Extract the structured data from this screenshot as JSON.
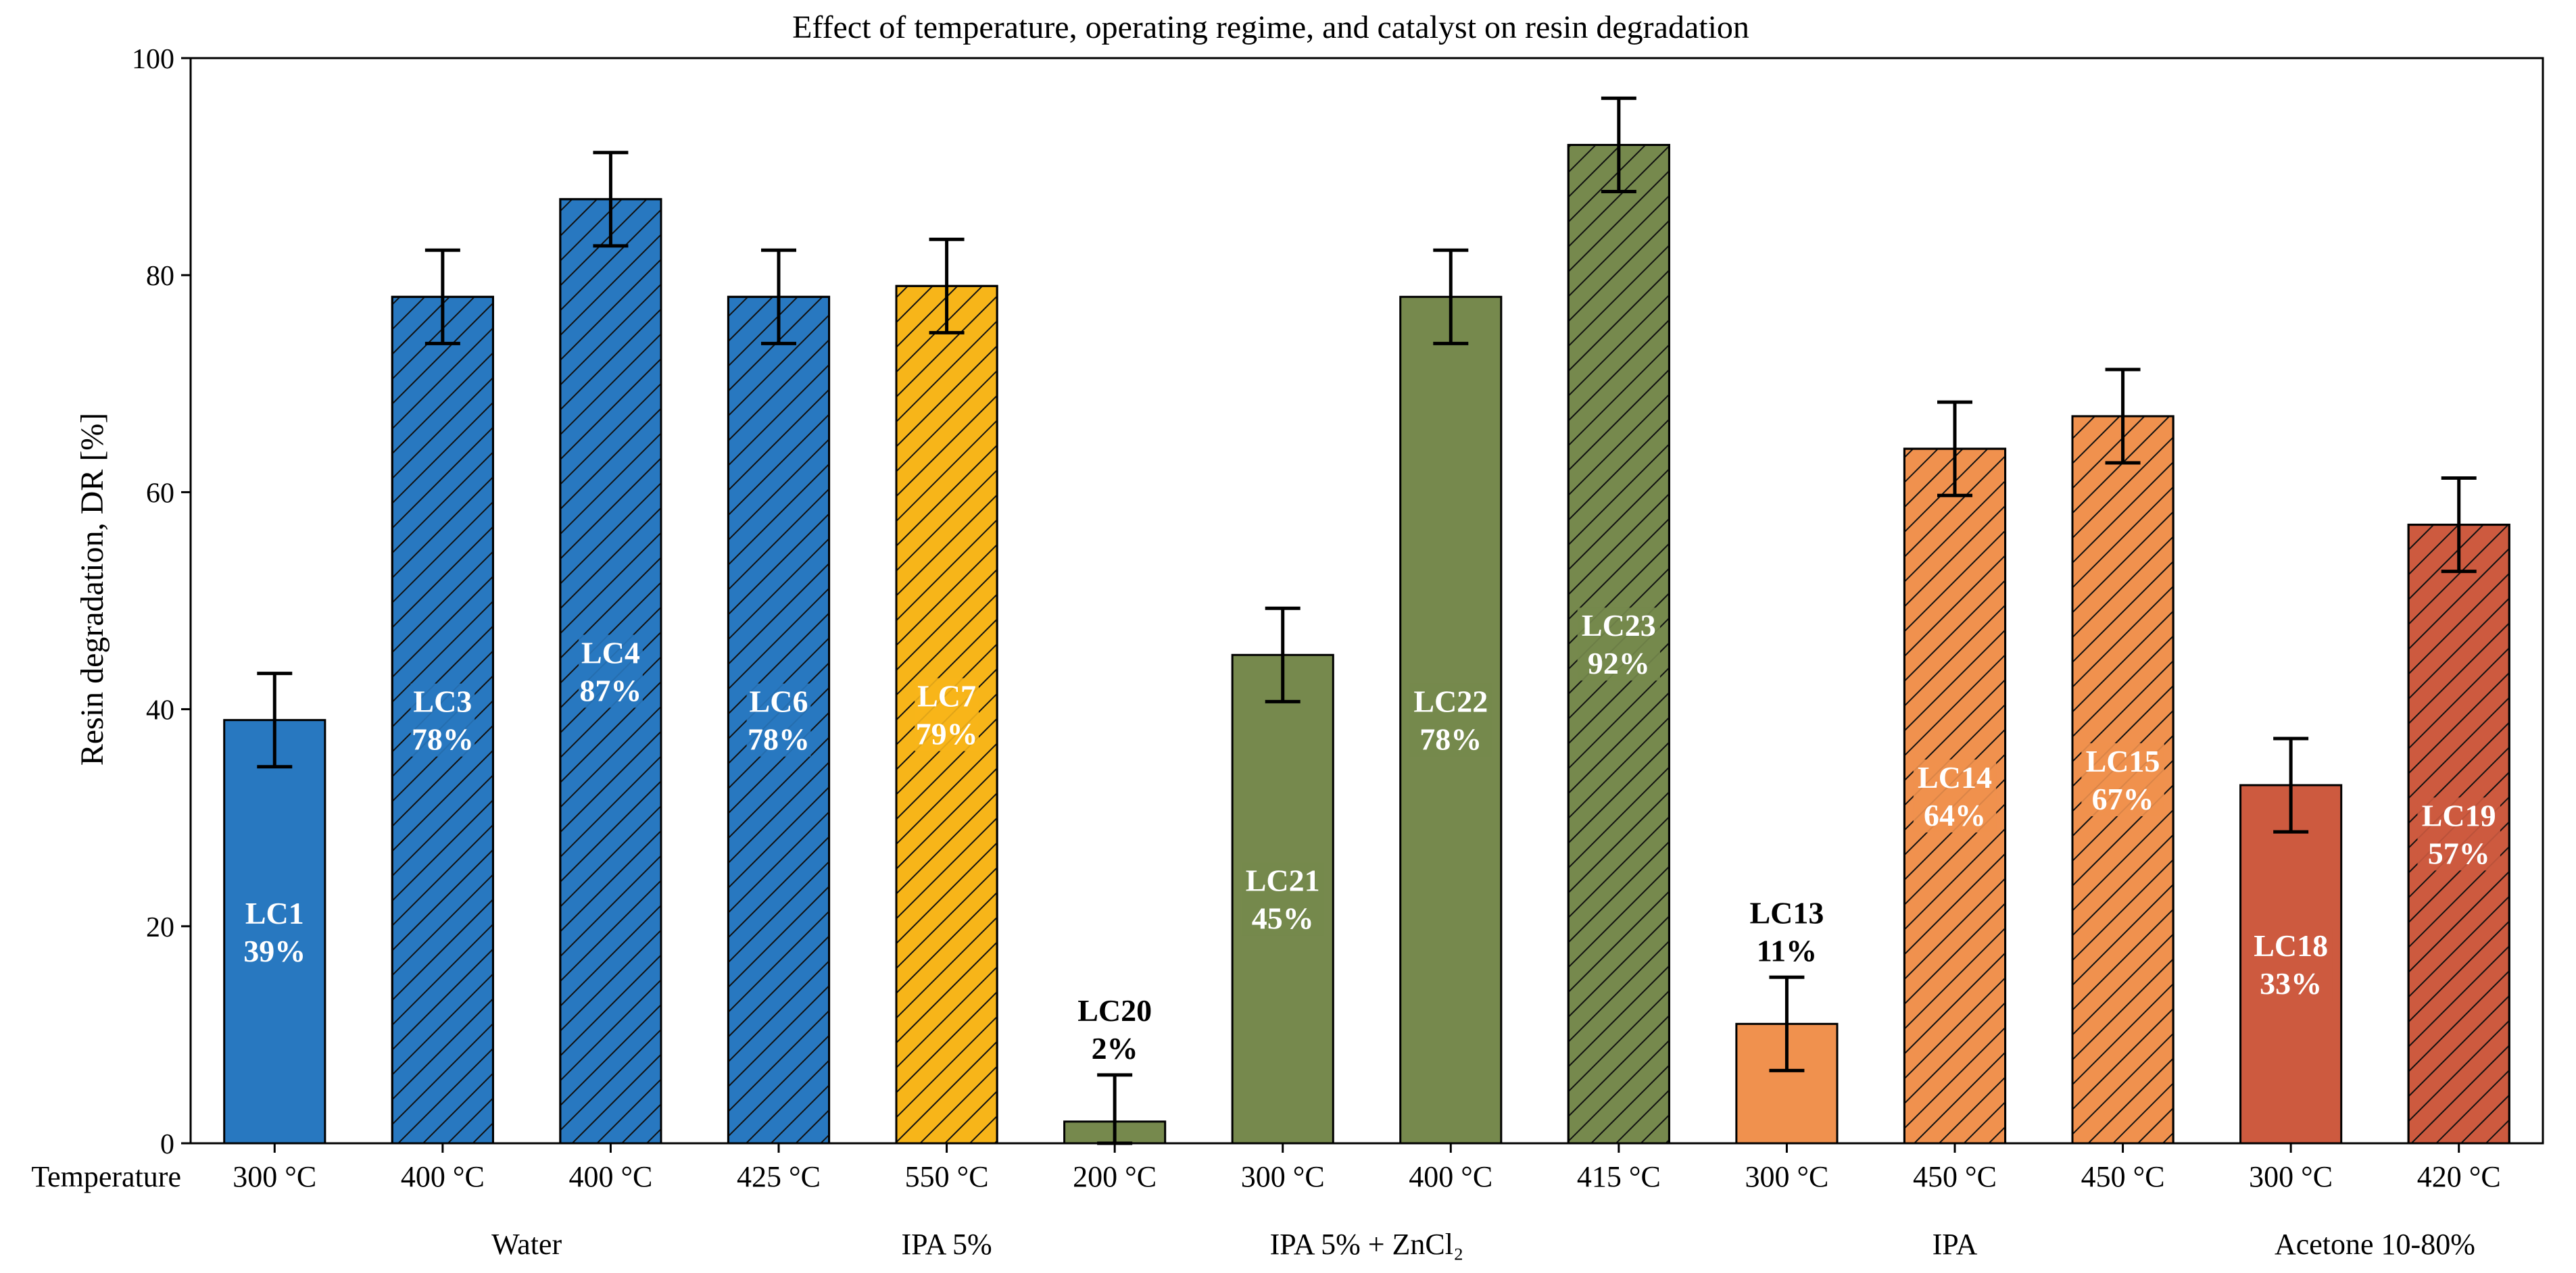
{
  "chart_data": {
    "type": "bar",
    "title": "Effect of temperature, operating regime, and catalyst on resin degradation",
    "xlabel": "",
    "ylabel": "Resin degradation, DR [%]",
    "ylim": [
      0,
      100
    ],
    "yticks": [
      0,
      20,
      40,
      60,
      80,
      100
    ],
    "row_label": "Temperature",
    "error_halfwidth": 4.3,
    "bars": [
      {
        "id": "LC1",
        "temp": "300 °C",
        "value": 39,
        "label": "LC1\n39%",
        "color": "#2878c0",
        "hatched": false,
        "label_inside": true
      },
      {
        "id": "LC3",
        "temp": "400 °C",
        "value": 78,
        "label": "LC3\n78%",
        "color": "#2878c0",
        "hatched": true,
        "label_inside": true
      },
      {
        "id": "LC4",
        "temp": "400 °C",
        "value": 87,
        "label": "LC4\n87%",
        "color": "#2878c0",
        "hatched": true,
        "label_inside": true
      },
      {
        "id": "LC6",
        "temp": "425 °C",
        "value": 78,
        "label": "LC6\n78%",
        "color": "#2878c0",
        "hatched": true,
        "label_inside": true
      },
      {
        "id": "LC7",
        "temp": "550 °C",
        "value": 79,
        "label": "LC7\n79%",
        "color": "#f7b519",
        "hatched": true,
        "label_inside": true
      },
      {
        "id": "LC20",
        "temp": "200 °C",
        "value": 2,
        "label": "LC20\n2%",
        "color": "#76894d",
        "hatched": false,
        "label_inside": false
      },
      {
        "id": "LC21",
        "temp": "300 °C",
        "value": 45,
        "label": "LC21\n45%",
        "color": "#76894d",
        "hatched": false,
        "label_inside": true
      },
      {
        "id": "LC22",
        "temp": "400 °C",
        "value": 78,
        "label": "LC22\n78%",
        "color": "#76894d",
        "hatched": false,
        "label_inside": true
      },
      {
        "id": "LC23",
        "temp": "415 °C",
        "value": 92,
        "label": "LC23\n92%",
        "color": "#76894d",
        "hatched": true,
        "label_inside": true
      },
      {
        "id": "LC13",
        "temp": "300 °C",
        "value": 11,
        "label": "LC13\n11%",
        "color": "#f0914e",
        "hatched": false,
        "label_inside": false
      },
      {
        "id": "LC14",
        "temp": "450 °C",
        "value": 64,
        "label": "LC14\n64%",
        "color": "#f0914e",
        "hatched": true,
        "label_inside": true
      },
      {
        "id": "LC15",
        "temp": "450 °C",
        "value": 67,
        "label": "LC15\n67%",
        "color": "#f0914e",
        "hatched": true,
        "label_inside": true
      },
      {
        "id": "LC18",
        "temp": "300 °C",
        "value": 33,
        "label": "LC18\n33%",
        "color": "#cd5a3f",
        "hatched": false,
        "label_inside": true
      },
      {
        "id": "LC19",
        "temp": "420 °C",
        "value": 57,
        "label": "LC19\n57%",
        "color": "#cd5a3f",
        "hatched": true,
        "label_inside": true
      }
    ],
    "groups": [
      {
        "name": "Water",
        "from": 0,
        "to": 3
      },
      {
        "name": "IPA 5%",
        "from": 4,
        "to": 4
      },
      {
        "name": "IPA 5% + ZnCl₂",
        "from": 5,
        "to": 8
      },
      {
        "name": "IPA",
        "from": 9,
        "to": 11
      },
      {
        "name": "Acetone 10-80%",
        "from": 12,
        "to": 13
      }
    ]
  }
}
